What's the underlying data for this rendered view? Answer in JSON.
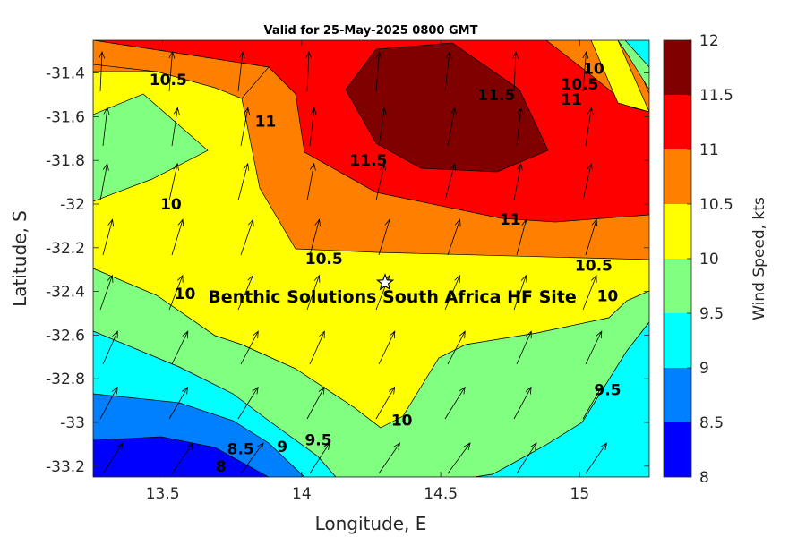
{
  "chart_data": {
    "type": "heatmap",
    "title": "Valid for 25-May-2025 0800 GMT",
    "xlabel": "Longitude, E",
    "ylabel": "Latitude, S",
    "colorbar_label": "Wind Speed, kts",
    "xlim": [
      13.25,
      15.25
    ],
    "ylim": [
      -33.25,
      -31.25
    ],
    "xticks": [
      13.5,
      14,
      14.5,
      15
    ],
    "xtick_labels": [
      "13.5",
      "14",
      "14.5",
      "15"
    ],
    "yticks": [
      -31.4,
      -31.6,
      -31.8,
      -32,
      -32.2,
      -32.4,
      -32.6,
      -32.8,
      -33,
      -33.2
    ],
    "ytick_labels": [
      "-31.4",
      "-31.6",
      "-31.8",
      "-32",
      "-32.2",
      "-32.4",
      "-32.6",
      "-32.8",
      "-33",
      "-33.2"
    ],
    "levels": [
      8,
      8.5,
      9,
      9.5,
      10,
      10.5,
      11,
      11.5,
      12
    ],
    "colorbar_tick_labels": [
      "8",
      "8.5",
      "9",
      "9.5",
      "10",
      "10.5",
      "11",
      "11.5",
      "12"
    ],
    "level_colors": [
      "#0000ff",
      "#0080ff",
      "#00ffff",
      "#80ff80",
      "#ffff00",
      "#ff8000",
      "#ff0000",
      "#800000"
    ],
    "contour_labels": [
      {
        "text": "10.5",
        "lon": 13.52,
        "lat": -31.43
      },
      {
        "text": "11",
        "lon": 13.87,
        "lat": -31.62
      },
      {
        "text": "11.5",
        "lon": 14.24,
        "lat": -31.8
      },
      {
        "text": "11.5",
        "lon": 14.7,
        "lat": -31.5
      },
      {
        "text": "11",
        "lon": 14.97,
        "lat": -31.52
      },
      {
        "text": "10.5",
        "lon": 15.0,
        "lat": -31.45
      },
      {
        "text": "10",
        "lon": 15.05,
        "lat": -31.38
      },
      {
        "text": "10",
        "lon": 13.53,
        "lat": -32.0
      },
      {
        "text": "11",
        "lon": 14.75,
        "lat": -32.07
      },
      {
        "text": "10.5",
        "lon": 14.08,
        "lat": -32.25
      },
      {
        "text": "10.5",
        "lon": 15.05,
        "lat": -32.28
      },
      {
        "text": "10",
        "lon": 13.58,
        "lat": -32.41
      },
      {
        "text": "10",
        "lon": 15.1,
        "lat": -32.42
      },
      {
        "text": "9.5",
        "lon": 15.1,
        "lat": -32.85
      },
      {
        "text": "10",
        "lon": 14.36,
        "lat": -32.99
      },
      {
        "text": "9.5",
        "lon": 14.06,
        "lat": -33.08
      },
      {
        "text": "9",
        "lon": 13.93,
        "lat": -33.11
      },
      {
        "text": "8.5",
        "lon": 13.78,
        "lat": -33.12
      },
      {
        "text": "8",
        "lon": 13.71,
        "lat": -33.2
      }
    ],
    "site": {
      "name": "Benthic Solutions South Africa HF Site",
      "lon": 14.3,
      "lat": -32.36
    }
  }
}
